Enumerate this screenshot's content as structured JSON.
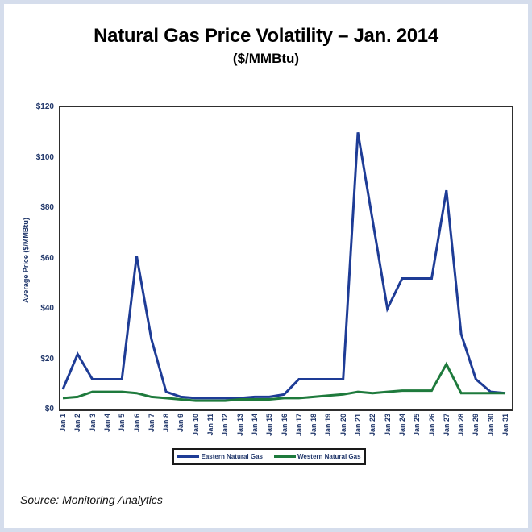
{
  "page": {
    "title": "Natural Gas Price Volatility – Jan. 2014",
    "subtitle": "($/MMBtu)",
    "source": "Source: Monitoring Analytics"
  },
  "colors": {
    "eastern_line": "#1e3c96",
    "western_line": "#1e7a3c",
    "axis_text": "#22386b",
    "plot_border": "#2e2e2e",
    "page_border": "#d5ddec"
  },
  "chart_data": {
    "type": "line",
    "title": "Natural Gas Price Volatility – Jan. 2014",
    "subtitle": "($/MMBtu)",
    "xlabel": "",
    "ylabel": "Average Price ($/MMBtu)",
    "ylim": [
      0,
      120
    ],
    "ytick_step": 20,
    "ytick_labels": [
      "$0",
      "$20",
      "$40",
      "$60",
      "$80",
      "$100",
      "$120"
    ],
    "grid": false,
    "legend_position": "bottom",
    "categories": [
      "Jan 1",
      "Jan 2",
      "Jan 3",
      "Jan 4",
      "Jan 5",
      "Jan 6",
      "Jan 7",
      "Jan 8",
      "Jan 9",
      "Jan 10",
      "Jan 11",
      "Jan 12",
      "Jan 13",
      "Jan 14",
      "Jan 15",
      "Jan 16",
      "Jan 17",
      "Jan 18",
      "Jan 19",
      "Jan 20",
      "Jan 21",
      "Jan 22",
      "Jan 23",
      "Jan 24",
      "Jan 25",
      "Jan 26",
      "Jan 27",
      "Jan 28",
      "Jan 29",
      "Jan 30",
      "Jan 31"
    ],
    "series": [
      {
        "name": "Eastern Natural Gas",
        "color": "#1e3c96",
        "values": [
          8,
          22,
          12,
          12,
          12,
          61,
          28,
          7,
          5,
          4.5,
          4.5,
          4.5,
          4.5,
          5,
          5,
          6,
          12,
          12,
          12,
          12,
          110,
          75,
          40,
          52,
          52,
          52,
          87,
          30,
          12,
          7,
          6.5
        ]
      },
      {
        "name": "Western Natural Gas",
        "color": "#1e7a3c",
        "values": [
          4.5,
          5,
          7,
          7,
          7,
          6.5,
          5,
          4.5,
          4,
          3.5,
          3.5,
          3.5,
          4,
          4,
          4,
          4.5,
          4.5,
          5,
          5.5,
          6,
          7,
          6.5,
          7,
          7.5,
          7.5,
          7.5,
          18,
          6.5,
          6.5,
          6.5,
          6.5
        ]
      }
    ]
  }
}
